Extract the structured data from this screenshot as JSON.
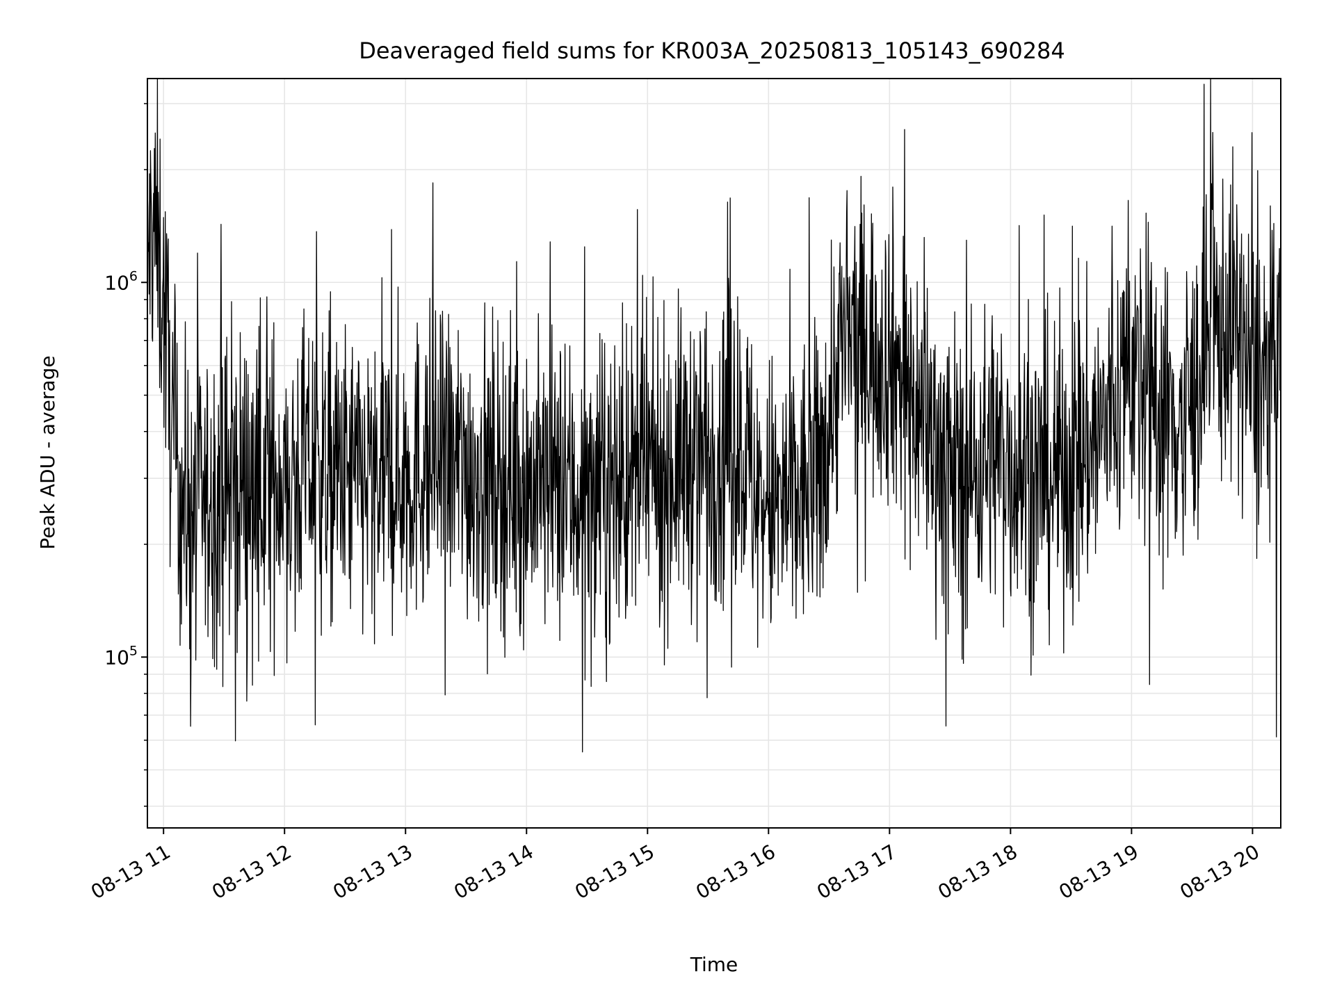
{
  "chart_data": {
    "type": "line",
    "title": "Deaveraged field sums for KR003A_20250813_105143_690284",
    "xlabel": "Time",
    "ylabel": "Peak ADU - average",
    "x_ticks": [
      "08-13 11",
      "08-13 12",
      "08-13 13",
      "08-13 14",
      "08-13 15",
      "08-13 16",
      "08-13 17",
      "08-13 18",
      "08-13 19",
      "08-13 20"
    ],
    "y_ticks": [
      {
        "base": "10",
        "exp": "5",
        "value": 100000
      },
      {
        "base": "10",
        "exp": "6",
        "value": 1000000
      }
    ],
    "y_scale": "log",
    "xlim": [
      "2025-08-13 10:52",
      "2025-08-13 20:14"
    ],
    "ylim": [
      35000,
      3500000
    ],
    "grid": true,
    "line_color": "#000000",
    "series": [
      {
        "x": [
          "2025-08-13 10:52",
          "2025-08-13 10:55",
          "2025-08-13 11:00",
          "2025-08-13 11:05",
          "2025-08-13 11:10",
          "2025-08-13 11:15",
          "2025-08-13 11:20",
          "2025-08-13 11:30",
          "2025-08-13 11:40",
          "2025-08-13 11:50",
          "2025-08-13 12:00",
          "2025-08-13 12:15",
          "2025-08-13 12:30",
          "2025-08-13 12:45",
          "2025-08-13 13:00",
          "2025-08-13 13:15",
          "2025-08-13 13:30",
          "2025-08-13 13:45",
          "2025-08-13 14:00",
          "2025-08-13 14:15",
          "2025-08-13 14:30",
          "2025-08-13 14:45",
          "2025-08-13 15:00",
          "2025-08-13 15:15",
          "2025-08-13 15:30",
          "2025-08-13 15:45",
          "2025-08-13 15:55",
          "2025-08-13 16:05",
          "2025-08-13 16:15",
          "2025-08-13 16:25",
          "2025-08-13 16:35",
          "2025-08-13 16:45",
          "2025-08-13 17:00",
          "2025-08-13 17:15",
          "2025-08-13 17:30",
          "2025-08-13 17:40",
          "2025-08-13 17:50",
          "2025-08-13 18:00",
          "2025-08-13 18:15",
          "2025-08-13 18:30",
          "2025-08-13 18:45",
          "2025-08-13 19:00",
          "2025-08-13 19:10",
          "2025-08-13 19:20",
          "2025-08-13 19:30",
          "2025-08-13 19:40",
          "2025-08-13 19:50",
          "2025-08-13 20:00",
          "2025-08-13 20:14"
        ],
        "values": [
          1100000,
          1500000,
          900000,
          350000,
          260000,
          240000,
          250000,
          280000,
          300000,
          290000,
          310000,
          320000,
          300000,
          290000,
          310000,
          330000,
          320000,
          300000,
          290000,
          280000,
          270000,
          280000,
          300000,
          330000,
          360000,
          400000,
          260000,
          250000,
          270000,
          300000,
          650000,
          700000,
          650000,
          450000,
          320000,
          300000,
          360000,
          330000,
          300000,
          320000,
          400000,
          600000,
          500000,
          420000,
          480000,
          700000,
          800000,
          550000,
          600000
        ]
      }
    ]
  }
}
